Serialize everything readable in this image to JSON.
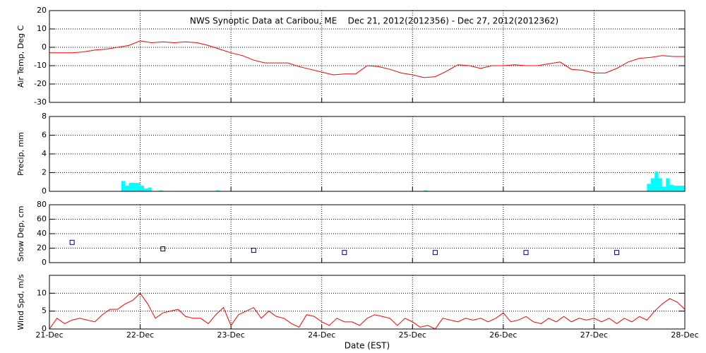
{
  "chart_data": [
    {
      "type": "line",
      "title": "NWS Synoptic Data at Caribou, ME    Dec 21, 2012(2012356) - Dec 27, 2012(2012362)",
      "ylabel": "Air Temp, Deg C",
      "color": "#ff0000",
      "x": [
        0,
        0.125,
        0.25,
        0.375,
        0.5,
        0.625,
        0.75,
        0.875,
        1,
        1.125,
        1.25,
        1.375,
        1.5,
        1.625,
        1.75,
        1.875,
        2,
        2.125,
        2.25,
        2.375,
        2.5,
        2.625,
        2.75,
        2.875,
        3,
        3.125,
        3.25,
        3.375,
        3.5,
        3.625,
        3.75,
        3.875,
        4,
        4.125,
        4.25,
        4.375,
        4.5,
        4.625,
        4.75,
        4.875,
        5,
        5.125,
        5.25,
        5.375,
        5.5,
        5.625,
        5.75,
        5.875,
        6,
        6.125,
        6.25,
        6.375,
        6.5,
        6.625,
        6.75,
        6.875,
        7
      ],
      "values": [
        -3,
        -3,
        -3,
        -2.5,
        -1.5,
        -1,
        0,
        1,
        3.5,
        2.5,
        3,
        2.5,
        3,
        2.5,
        1,
        -1,
        -3,
        -4.5,
        -7,
        -8.5,
        -8.5,
        -8.5,
        -10.5,
        -12,
        -13.5,
        -15,
        -14.5,
        -14.5,
        -10,
        -10.5,
        -12,
        -14,
        -15,
        -16.5,
        -16,
        -13,
        -9.5,
        -10,
        -11.5,
        -10,
        -10,
        -9.5,
        -10,
        -10,
        -9,
        -8,
        -12,
        -12.5,
        -14,
        -14,
        -11.5,
        -8,
        -6,
        -5.5,
        -4.5,
        -5,
        -5
      ],
      "xlim": [
        0,
        7
      ],
      "xticks": [
        0,
        1,
        2,
        3,
        4,
        5,
        6,
        7
      ],
      "ylim": [
        -30,
        20
      ],
      "yticks": [
        -30,
        -20,
        -10,
        0,
        10,
        20
      ],
      "grid": true
    },
    {
      "type": "bar",
      "ylabel": "Precip, mm",
      "color": "#00ffff",
      "x": [
        0.792,
        0.833,
        0.875,
        0.917,
        0.958,
        1.0,
        1.042,
        1.083,
        1.208,
        1.833,
        4.125,
        6.583,
        6.625,
        6.667,
        6.708,
        6.75,
        6.792,
        6.833,
        6.875,
        6.917,
        6.958
      ],
      "values": [
        1.1,
        0.6,
        0.9,
        0.9,
        0.9,
        0.6,
        0.3,
        0.4,
        0.1,
        0.1,
        0.1,
        0.8,
        1.4,
        2.1,
        1.4,
        0.5,
        1.4,
        0.7,
        0.6,
        0.6,
        0.6
      ],
      "xlim": [
        0,
        7
      ],
      "xticks": [
        0,
        1,
        2,
        3,
        4,
        5,
        6,
        7
      ],
      "ylim": [
        0,
        8
      ],
      "yticks": [
        0,
        2,
        4,
        6,
        8
      ],
      "grid": true
    },
    {
      "type": "scatter",
      "ylabel": "Snow Dep, cm",
      "color": "#000080",
      "x": [
        0.25,
        1.25,
        2.25,
        3.25,
        4.25,
        5.25,
        6.25
      ],
      "values": [
        28,
        19,
        17,
        14,
        14,
        14,
        14
      ],
      "xlim": [
        0,
        7
      ],
      "xticks": [
        0,
        1,
        2,
        3,
        4,
        5,
        6,
        7
      ],
      "ylim": [
        0,
        80
      ],
      "yticks": [
        0,
        20,
        40,
        60,
        80
      ],
      "grid": true
    },
    {
      "type": "line",
      "ylabel": "Wind Spd, m/s",
      "xlabel": "Date (EST)",
      "color": "#ff0000",
      "x": [
        0,
        0.083,
        0.167,
        0.25,
        0.333,
        0.417,
        0.5,
        0.583,
        0.667,
        0.75,
        0.833,
        0.917,
        1,
        1.083,
        1.167,
        1.25,
        1.333,
        1.417,
        1.5,
        1.583,
        1.667,
        1.75,
        1.833,
        1.917,
        2,
        2.083,
        2.167,
        2.25,
        2.333,
        2.417,
        2.5,
        2.583,
        2.667,
        2.75,
        2.833,
        2.917,
        3,
        3.083,
        3.167,
        3.25,
        3.333,
        3.417,
        3.5,
        3.583,
        3.667,
        3.75,
        3.833,
        3.917,
        4,
        4.083,
        4.167,
        4.25,
        4.333,
        4.417,
        4.5,
        4.583,
        4.667,
        4.75,
        4.833,
        4.917,
        5,
        5.083,
        5.167,
        5.25,
        5.333,
        5.417,
        5.5,
        5.583,
        5.667,
        5.75,
        5.833,
        5.917,
        6,
        6.083,
        6.167,
        6.25,
        6.333,
        6.417,
        6.5,
        6.583,
        6.667,
        6.75,
        6.833,
        6.917,
        7
      ],
      "values": [
        0,
        3,
        1.5,
        2.5,
        3,
        2.5,
        2,
        4,
        5.5,
        5.5,
        7,
        8,
        10,
        7,
        3,
        4.5,
        5,
        5.5,
        3.5,
        3,
        3,
        1.5,
        4,
        6,
        1,
        4,
        5,
        6,
        3,
        5,
        3.5,
        3,
        1.5,
        0.5,
        4,
        3.5,
        2,
        1,
        3,
        2,
        2,
        1,
        3,
        4,
        3.5,
        3,
        1,
        3,
        2,
        0.5,
        1,
        0,
        3,
        2.5,
        2,
        3,
        2.5,
        3,
        2,
        3,
        4.5,
        2,
        2.5,
        3.5,
        2,
        1.5,
        3,
        2,
        3.5,
        2,
        3,
        2.5,
        3,
        2,
        3,
        1.5,
        3,
        2,
        3.5,
        2.5,
        5,
        7,
        8.5,
        7.5,
        5.5
      ],
      "xlim": [
        0,
        7
      ],
      "xticks": [
        {
          "value": 0,
          "label": "21-Dec"
        },
        {
          "value": 1,
          "label": "22-Dec"
        },
        {
          "value": 2,
          "label": "23-Dec"
        },
        {
          "value": 3,
          "label": "24-Dec"
        },
        {
          "value": 4,
          "label": "25-Dec"
        },
        {
          "value": 5,
          "label": "26-Dec"
        },
        {
          "value": 6,
          "label": "27-Dec"
        },
        {
          "value": 7,
          "label": "28-Dec"
        }
      ],
      "ylim": [
        0,
        15
      ],
      "yticks": [
        0,
        5,
        10
      ],
      "grid": true
    }
  ]
}
